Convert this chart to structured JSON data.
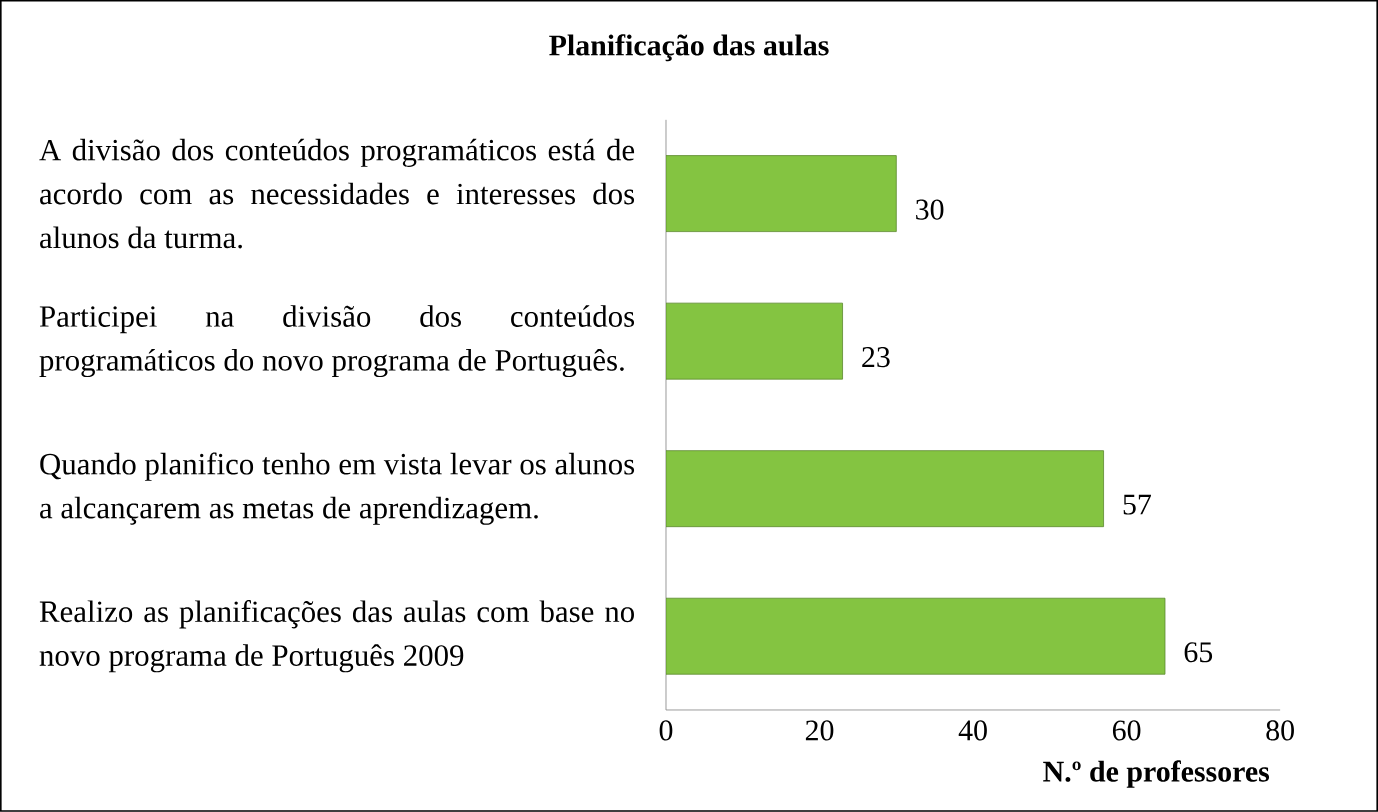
{
  "chart_data": {
    "type": "bar",
    "orientation": "horizontal",
    "title": "Planificação das aulas",
    "xlabel": "N.º de professores",
    "categories": [
      "A divisão dos conteúdos programáticos está de acordo com as necessidades e interesses dos alunos da turma.",
      "Participei na divisão dos conteúdos programáticos do novo programa de Português.",
      "Quando planifico tenho em vista levar os alunos a alcançarem as metas de aprendizagem.",
      "Realizo as planificações das aulas com base no novo programa de Português 2009"
    ],
    "values": [
      30,
      23,
      57,
      65
    ],
    "color": "#84c441",
    "data_labels": true,
    "xlim": [
      0,
      80
    ],
    "xticks": [
      0,
      20,
      40,
      60,
      80
    ],
    "grid": false
  }
}
